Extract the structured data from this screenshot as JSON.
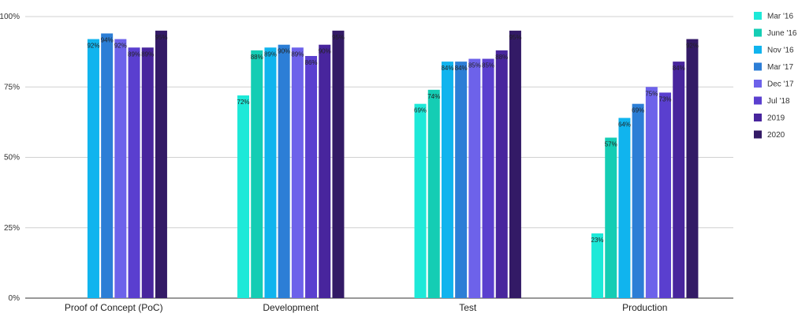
{
  "chart_data": {
    "type": "bar",
    "title": "",
    "xlabel": "",
    "ylabel": "",
    "ylim": [
      0,
      100
    ],
    "yticks": [
      0,
      25,
      50,
      75,
      100
    ],
    "ytick_labels": [
      "0%",
      "25%",
      "50%",
      "75%",
      "100%"
    ],
    "grid": true,
    "legend_position": "right",
    "categories": [
      "Proof of Concept (PoC)",
      "Development",
      "Test",
      "Production"
    ],
    "series": [
      {
        "name": "Mar '16",
        "color": "#1de9d8",
        "values": [
          null,
          72,
          69,
          23
        ],
        "labels": [
          "",
          "72%",
          "69%",
          "23%"
        ]
      },
      {
        "name": "June '16",
        "color": "#14cdb4",
        "values": [
          null,
          88,
          74,
          57
        ],
        "labels": [
          "",
          "88%",
          "74%",
          "57%"
        ]
      },
      {
        "name": "Nov '16",
        "color": "#10b4ee",
        "values": [
          92,
          89,
          84,
          64
        ],
        "labels": [
          "92%",
          "89%",
          "84%",
          "64%"
        ]
      },
      {
        "name": "Mar '17",
        "color": "#2c7ed6",
        "values": [
          94,
          90,
          84,
          69
        ],
        "labels": [
          "94%",
          "90%",
          "84%",
          "69%"
        ]
      },
      {
        "name": "Dec '17",
        "color": "#6d62ea",
        "values": [
          92,
          89,
          85,
          75
        ],
        "labels": [
          "92%",
          "89%",
          "85%",
          "75%"
        ]
      },
      {
        "name": "Jul '18",
        "color": "#5a3fcf",
        "values": [
          89,
          86,
          85,
          73
        ],
        "labels": [
          "89%",
          "86%",
          "85%",
          "73%"
        ]
      },
      {
        "name": "2019",
        "color": "#48259d",
        "values": [
          89,
          90,
          88,
          84
        ],
        "labels": [
          "89%",
          "90%",
          "88%",
          "84%"
        ]
      },
      {
        "name": "2020",
        "color": "#331a66",
        "values": [
          95,
          95,
          95,
          92
        ],
        "labels": [
          "95%",
          "95%",
          "95%",
          "92%"
        ]
      }
    ]
  }
}
